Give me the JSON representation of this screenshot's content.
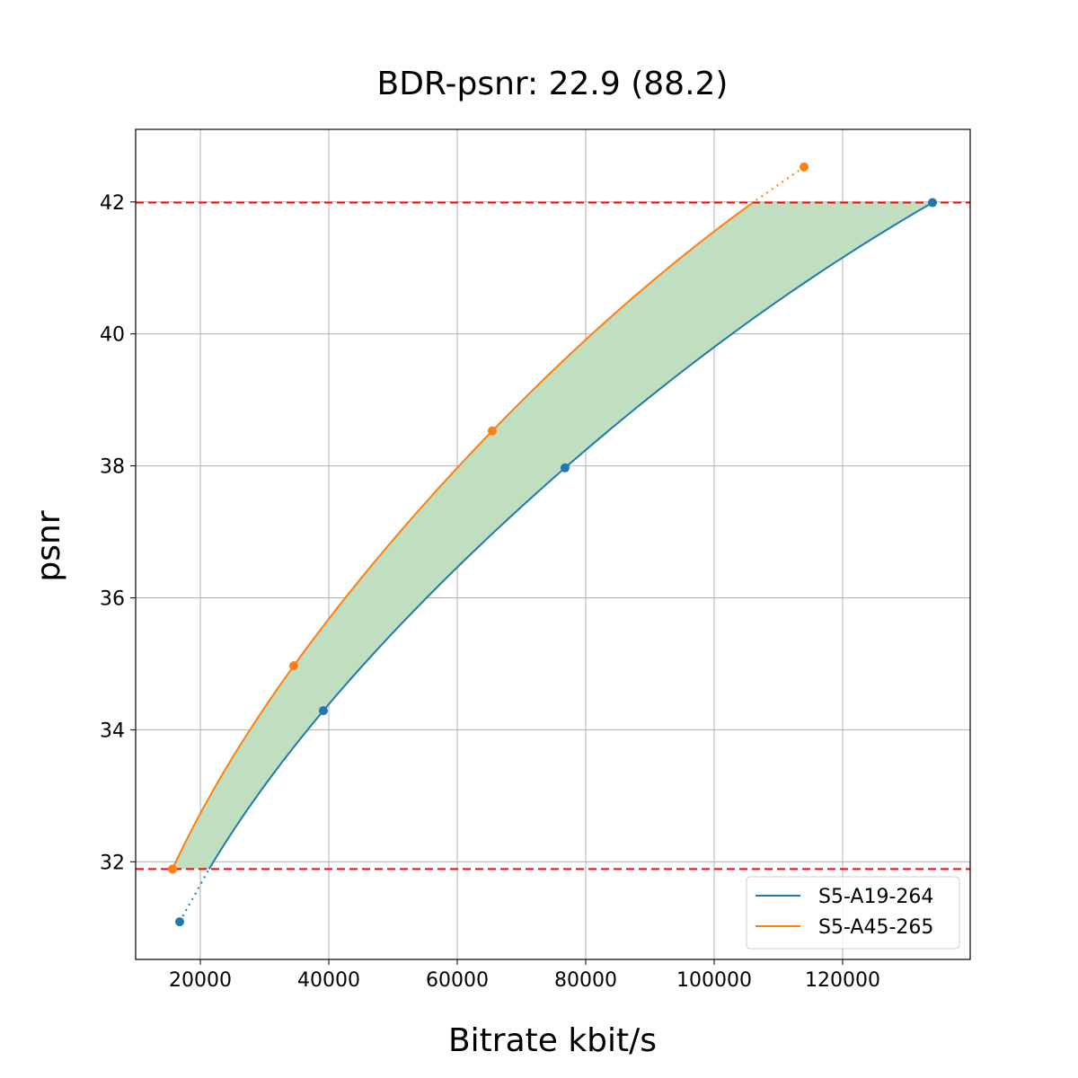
{
  "chart_data": {
    "type": "line",
    "title": "BDR-psnr: 22.9 (88.2)",
    "xlabel": "Bitrate kbit/s",
    "ylabel": "psnr",
    "xlim": [
      9930,
      139860
    ],
    "ylim": [
      30.52,
      43.1
    ],
    "xticks": [
      20000,
      40000,
      60000,
      80000,
      100000,
      120000
    ],
    "xtick_labels": [
      "20000",
      "40000",
      "60000",
      "80000",
      "100000",
      "120000"
    ],
    "yticks": [
      32,
      34,
      36,
      38,
      40,
      42
    ],
    "ytick_labels": [
      "32",
      "34",
      "36",
      "38",
      "40",
      "42"
    ],
    "grid": true,
    "legend_position": "lower-right",
    "series": [
      {
        "name": "S5-A19-264",
        "color": "#1f77b4",
        "x": [
          16780,
          39160,
          76780,
          133990
        ],
        "y": [
          31.09,
          34.29,
          37.97,
          41.99
        ]
      },
      {
        "name": "S5-A45-265",
        "color": "#ff7f0e",
        "x": [
          15660,
          34540,
          65450,
          113990
        ],
        "y": [
          31.89,
          34.97,
          38.53,
          42.53
        ]
      }
    ],
    "reference_lines": {
      "color": "#ff0000",
      "style": "dashed",
      "y": [
        41.99,
        31.89
      ]
    },
    "fill_between": {
      "color": "#c0dfc0",
      "y_range": [
        31.89,
        41.99
      ]
    }
  }
}
